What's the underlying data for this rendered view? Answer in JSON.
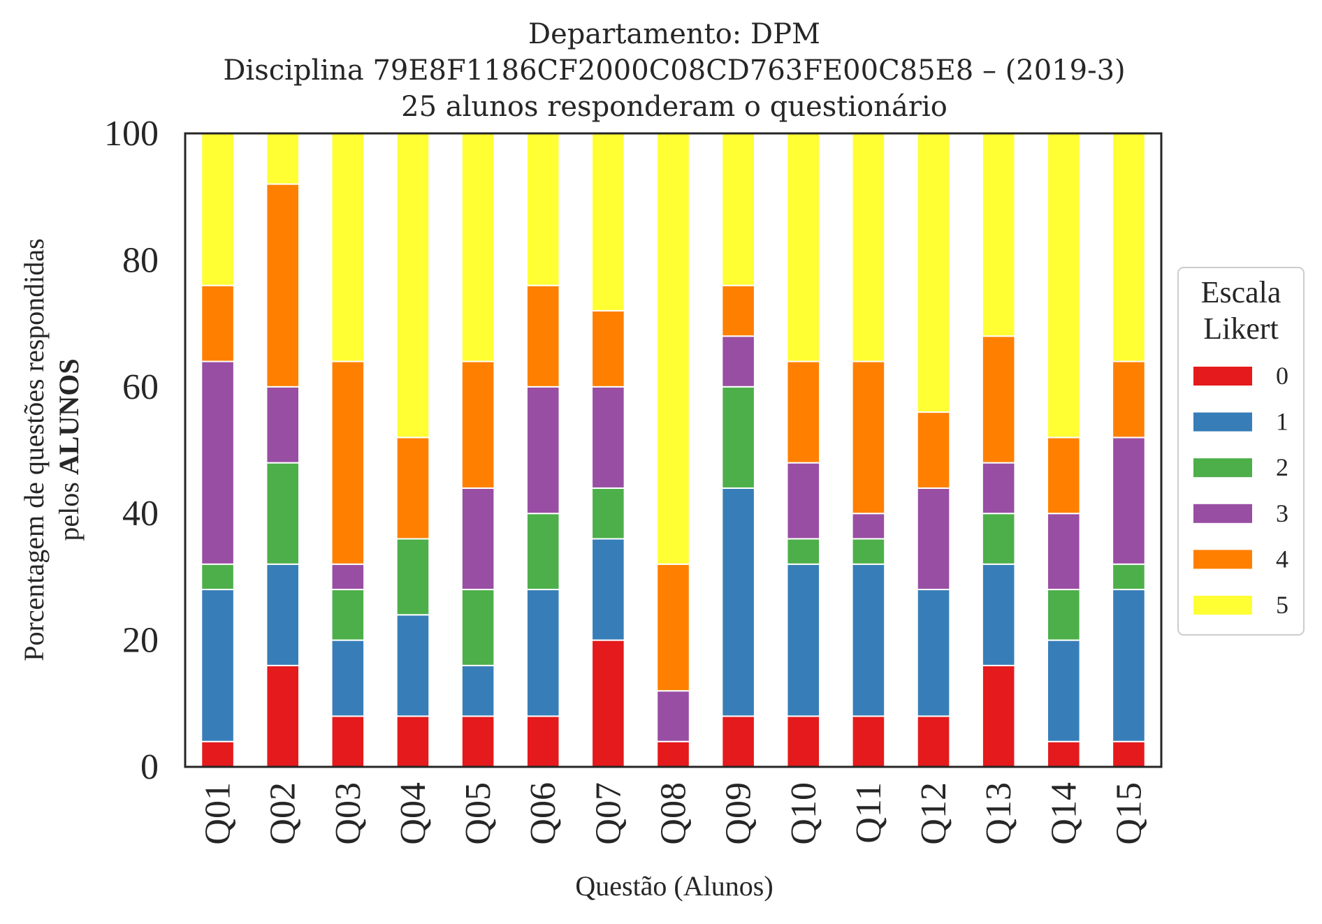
{
  "chart_data": {
    "type": "bar",
    "stacked": true,
    "title": [
      "Departamento: DPM",
      "Disciplina 79E8F1186CF2000C08CD763FE00C85E8 – (2019-3)",
      "25 alunos responderam o questionário"
    ],
    "xlabel": "Questão (Alunos)",
    "ylabel": {
      "line1": "Porcentagem de questões respondidas",
      "line2_prefix": "pelos ",
      "line2_bold": "ALUNOS"
    },
    "ylim": [
      0,
      100
    ],
    "yticks": [
      "0",
      "20",
      "40",
      "60",
      "80",
      "100"
    ],
    "categories": [
      "Q01",
      "Q02",
      "Q03",
      "Q04",
      "Q05",
      "Q06",
      "Q07",
      "Q08",
      "Q09",
      "Q10",
      "Q11",
      "Q12",
      "Q13",
      "Q14",
      "Q15"
    ],
    "legend": {
      "title": [
        "Escala",
        "Likert"
      ],
      "position": "center-right"
    },
    "grid": false,
    "series": [
      {
        "name": "0",
        "color": "#e41a1c",
        "values": [
          4,
          16,
          8,
          8,
          8,
          8,
          20,
          4,
          8,
          8,
          8,
          8,
          16,
          4,
          4
        ]
      },
      {
        "name": "1",
        "color": "#377eb8",
        "values": [
          24,
          16,
          12,
          16,
          8,
          20,
          16,
          0,
          36,
          24,
          24,
          20,
          16,
          16,
          24
        ]
      },
      {
        "name": "2",
        "color": "#4daf4a",
        "values": [
          4,
          16,
          8,
          12,
          12,
          12,
          8,
          0,
          16,
          4,
          4,
          0,
          8,
          8,
          4
        ]
      },
      {
        "name": "3",
        "color": "#984ea3",
        "values": [
          32,
          12,
          4,
          0,
          16,
          20,
          16,
          8,
          8,
          12,
          4,
          16,
          8,
          12,
          20
        ]
      },
      {
        "name": "4",
        "color": "#ff7f00",
        "values": [
          12,
          32,
          32,
          16,
          20,
          16,
          12,
          20,
          8,
          16,
          24,
          12,
          20,
          12,
          12
        ]
      },
      {
        "name": "5",
        "color": "#ffff33",
        "values": [
          24,
          8,
          36,
          48,
          36,
          24,
          28,
          68,
          24,
          36,
          36,
          44,
          32,
          48,
          36
        ]
      }
    ]
  }
}
